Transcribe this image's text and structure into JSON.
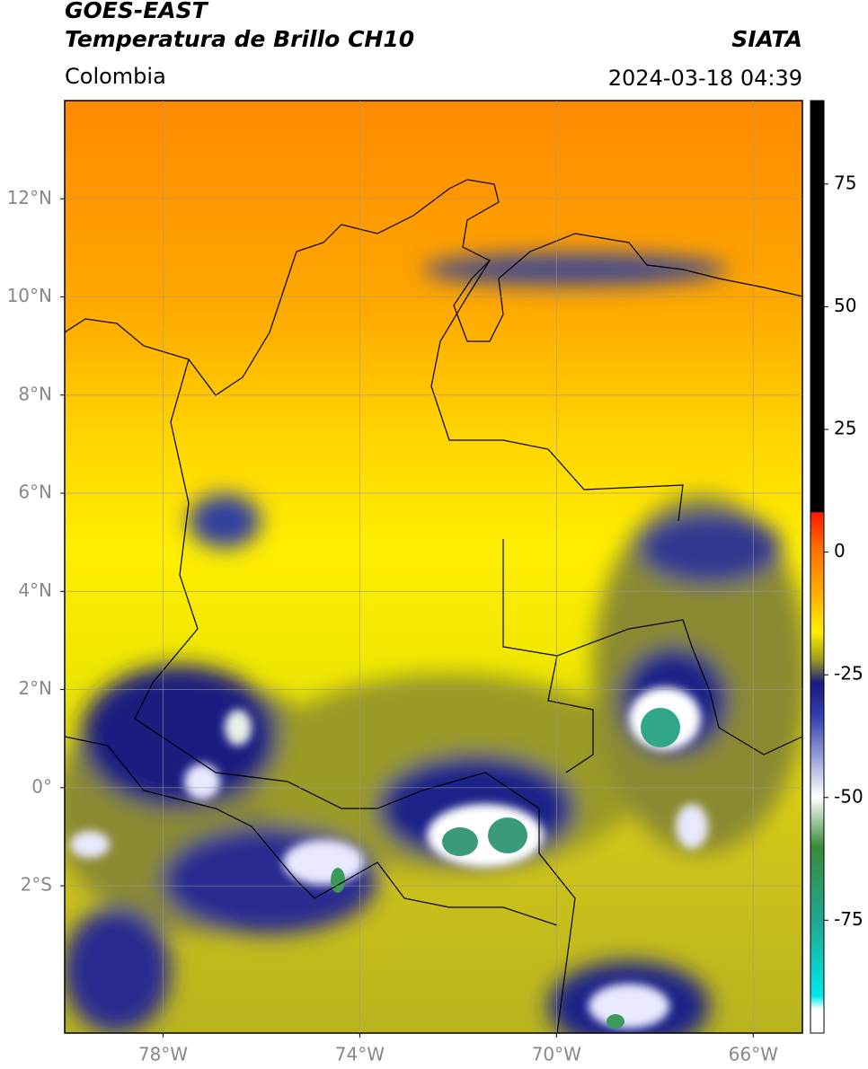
{
  "header": {
    "title": "GOES-EAST",
    "subtitle": "Temperatura de Brillo CH10",
    "region": "Colombia",
    "source": "SIATA",
    "datetime": "2024-03-18 04:39"
  },
  "map": {
    "lonlim": [
      -80,
      -65
    ],
    "latlim": [
      -5,
      14
    ],
    "lat_ticks": [
      {
        "value": 12,
        "label": "12°N"
      },
      {
        "value": 10,
        "label": "10°N"
      },
      {
        "value": 8,
        "label": "8°N"
      },
      {
        "value": 6,
        "label": "6°N"
      },
      {
        "value": 4,
        "label": "4°N"
      },
      {
        "value": 2,
        "label": "2°N"
      },
      {
        "value": 0,
        "label": "0°"
      },
      {
        "value": -2,
        "label": "2°S"
      }
    ],
    "lon_ticks": [
      {
        "value": -78,
        "label": "78°W"
      },
      {
        "value": -74,
        "label": "74°W"
      },
      {
        "value": -70,
        "label": "70°W"
      },
      {
        "value": -66,
        "label": "66°W"
      }
    ],
    "grid": true
  },
  "colorbar": {
    "range": [
      -98,
      92
    ],
    "ticks": [
      75,
      50,
      25,
      0,
      -25,
      -50,
      -75
    ]
  }
}
